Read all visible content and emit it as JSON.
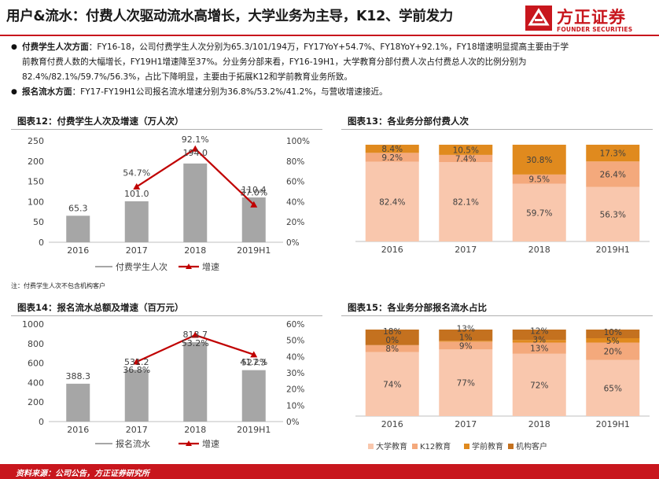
{
  "header": {
    "title": "用户&流水：付费人次驱动流水高增长，大学业务为主导，K12、学前发力",
    "brand_cn": "方正证券",
    "brand_en": "FOUNDER SECURITIES"
  },
  "bullets": [
    {
      "bold": "付费学生人次方面",
      "text": "：FY16-18，公司付费学生人次分别为65.3/101/194万，FY17YoY+54.7%、FY18YoY+92.1%，FY18增速明显提高主要由于学"
    },
    {
      "bold": "",
      "text": "前教育付费人数的大幅增长，FY19H1增速降至37%。分业务分部来看，FY16-19H1，大学教育分部付费人次占付费总人次的比例分别为"
    },
    {
      "bold": "",
      "text": "82.4%/82.1%/59.7%/56.3%，占比下降明显，主要由于拓展K12和学前教育业务所致。"
    },
    {
      "bold": "报名流水方面",
      "text": "：FY17-FY19H1公司报名流水增速分别为36.8%/53.2%/41.2%，与营收增速接近。"
    }
  ],
  "panels": {
    "p12_title": "图表12：付费学生人次及增速（万人次）",
    "p13_title": "图表13：各业务分部付费人次",
    "p14_title": "图表14：报名流水总额及增速（百万元）",
    "p15_title": "图表15：各业务分部报名流水占比",
    "note": "注：付费学生人次不包含机构客户"
  },
  "footer": {
    "source": "资料来源：公司公告，方正证券研究所"
  },
  "colors": {
    "brand_red": "#c8161d",
    "bar_gray": "#a6a6a6",
    "line_red": "#c00000",
    "university": "#f9c7ad",
    "k12": "#f4a97c",
    "preschool": "#e08a1e",
    "institution": "#c4711f"
  },
  "chart_data": [
    {
      "id": "chart12",
      "type": "bar",
      "title": "图表12：付费学生人次及增速（万人次）",
      "categories": [
        "2016",
        "2017",
        "2018",
        "2019H1"
      ],
      "ylim": [
        0,
        250
      ],
      "yticks": [
        "0",
        "50",
        "100",
        "150",
        "200",
        "250"
      ],
      "y2lim": [
        0,
        100
      ],
      "y2ticks": [
        "0%",
        "20%",
        "40%",
        "60%",
        "80%",
        "100%"
      ],
      "series": [
        {
          "name": "付费学生人次",
          "kind": "bar",
          "values": [
            65.3,
            101.0,
            194.0,
            110.4
          ],
          "labels": [
            "65.3",
            "101.0",
            "194.0",
            "110.4"
          ]
        },
        {
          "name": "增速",
          "kind": "line",
          "axis": "right",
          "values": [
            null,
            54.7,
            92.1,
            37.0
          ],
          "labels": [
            "",
            "54.7%",
            "92.1%",
            "37.0%"
          ]
        }
      ],
      "legend": "bottom"
    },
    {
      "id": "chart13",
      "type": "bar",
      "stacked": true,
      "title": "图表13：各业务分部付费人次",
      "categories": [
        "2016",
        "2017",
        "2018",
        "2019H1"
      ],
      "series": [
        {
          "name": "大学教育",
          "values": [
            82.4,
            82.1,
            59.7,
            56.3
          ],
          "labels": [
            "82.4%",
            "82.1%",
            "59.7%",
            "56.3%"
          ]
        },
        {
          "name": "K12教育",
          "values": [
            9.2,
            7.4,
            9.5,
            26.4
          ],
          "labels": [
            "9.2%",
            "7.4%",
            "9.5%",
            "26.4%"
          ]
        },
        {
          "name": "学前教育",
          "values": [
            8.4,
            10.5,
            30.8,
            17.3
          ],
          "labels": [
            "8.4%",
            "10.5%",
            "30.8%",
            "17.3%"
          ]
        }
      ]
    },
    {
      "id": "chart14",
      "type": "bar",
      "title": "图表14：报名流水总额及增速（百万元）",
      "categories": [
        "2016",
        "2017",
        "2018",
        "2019H1"
      ],
      "ylim": [
        0,
        1000
      ],
      "yticks": [
        "0",
        "200",
        "400",
        "600",
        "800",
        "1000"
      ],
      "y2lim": [
        0,
        60
      ],
      "y2ticks": [
        "0%",
        "10%",
        "20%",
        "30%",
        "40%",
        "50%",
        "60%"
      ],
      "series": [
        {
          "name": "报名流水",
          "kind": "bar",
          "values": [
            388.3,
            531.2,
            813.7,
            527.3
          ],
          "labels": [
            "388.3",
            "531.2",
            "813.7",
            "527.3"
          ]
        },
        {
          "name": "增速",
          "kind": "line",
          "axis": "right",
          "values": [
            null,
            36.8,
            53.2,
            41.2
          ],
          "labels": [
            "",
            "36.8%",
            "53.2%",
            "41.2%"
          ]
        }
      ],
      "legend": "bottom"
    },
    {
      "id": "chart15",
      "type": "bar",
      "stacked": true,
      "title": "图表15：各业务分部报名流水占比",
      "categories": [
        "2016",
        "2017",
        "2018",
        "2019H1"
      ],
      "series": [
        {
          "name": "大学教育",
          "values": [
            74,
            77,
            72,
            65
          ],
          "labels": [
            "74%",
            "77%",
            "72%",
            "65%"
          ]
        },
        {
          "name": "K12教育",
          "values": [
            8,
            9,
            13,
            20
          ],
          "labels": [
            "8%",
            "9%",
            "13%",
            "20%"
          ]
        },
        {
          "name": "学前教育",
          "values": [
            0,
            1,
            3,
            5
          ],
          "labels": [
            "0%",
            "1%",
            "3%",
            "5%"
          ]
        },
        {
          "name": "机构客户",
          "values": [
            18,
            13,
            12,
            10
          ],
          "labels": [
            "18%",
            "13%",
            "12%",
            "10%"
          ]
        }
      ],
      "legend": "bottom"
    }
  ]
}
